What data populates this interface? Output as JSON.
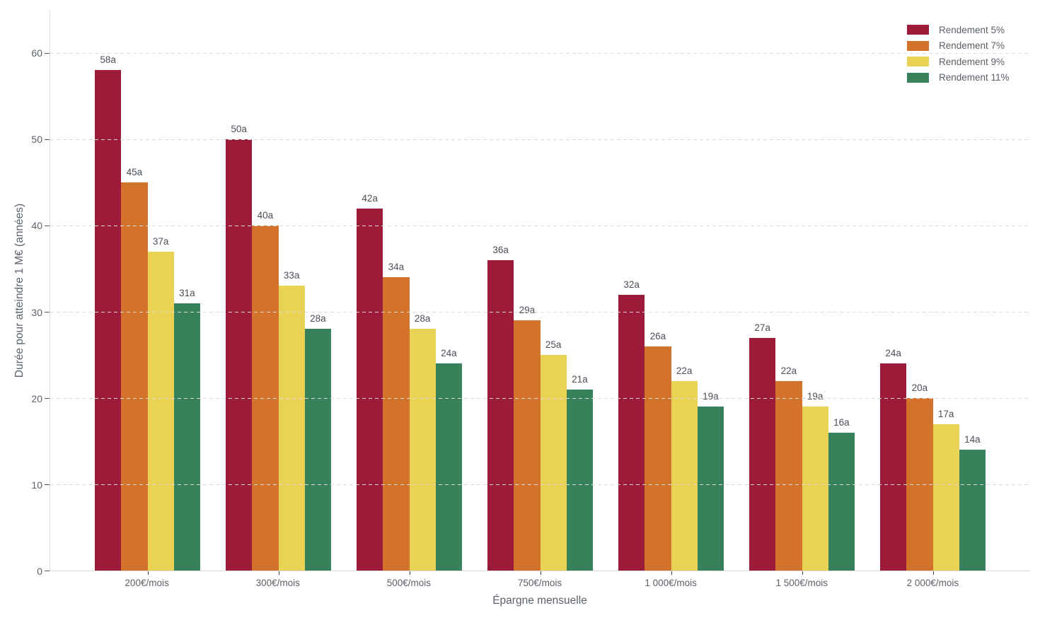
{
  "chart_data": {
    "type": "bar",
    "title": "",
    "xlabel": "Épargne mensuelle",
    "ylabel": "Durée pour atteindre 1 M€ (années)",
    "categories": [
      "200€/mois",
      "300€/mois",
      "500€/mois",
      "750€/mois",
      "1 000€/mois",
      "1 500€/mois",
      "2 000€/mois"
    ],
    "series": [
      {
        "name": "Rendement 5%",
        "color": "#9B1B38",
        "values": [
          58,
          50,
          42,
          36,
          32,
          27,
          24
        ],
        "labels": [
          "58a",
          "50a",
          "42a",
          "36a",
          "32a",
          "27a",
          "24a"
        ]
      },
      {
        "name": "Rendement 7%",
        "color": "#D2722B",
        "values": [
          45,
          40,
          34,
          29,
          26,
          22,
          20
        ],
        "labels": [
          "45a",
          "40a",
          "34a",
          "29a",
          "26a",
          "22a",
          "20a"
        ]
      },
      {
        "name": "Rendement 9%",
        "color": "#E9D254",
        "values": [
          37,
          33,
          28,
          25,
          22,
          19,
          17
        ],
        "labels": [
          "37a",
          "33a",
          "28a",
          "25a",
          "22a",
          "19a",
          "17a"
        ]
      },
      {
        "name": "Rendement 11%",
        "color": "#37815B",
        "values": [
          31,
          28,
          24,
          21,
          19,
          16,
          14
        ],
        "labels": [
          "31a",
          "28a",
          "24a",
          "21a",
          "19a",
          "16a",
          "14a"
        ]
      }
    ],
    "ylim": [
      0,
      65
    ],
    "yticks": [
      0,
      10,
      20,
      30,
      40,
      50,
      60
    ],
    "ytick_labels": [
      "0",
      "10",
      "20",
      "30",
      "40",
      "50",
      "60"
    ],
    "grid": "horizontal-dashed",
    "legend_position": "top-right"
  }
}
